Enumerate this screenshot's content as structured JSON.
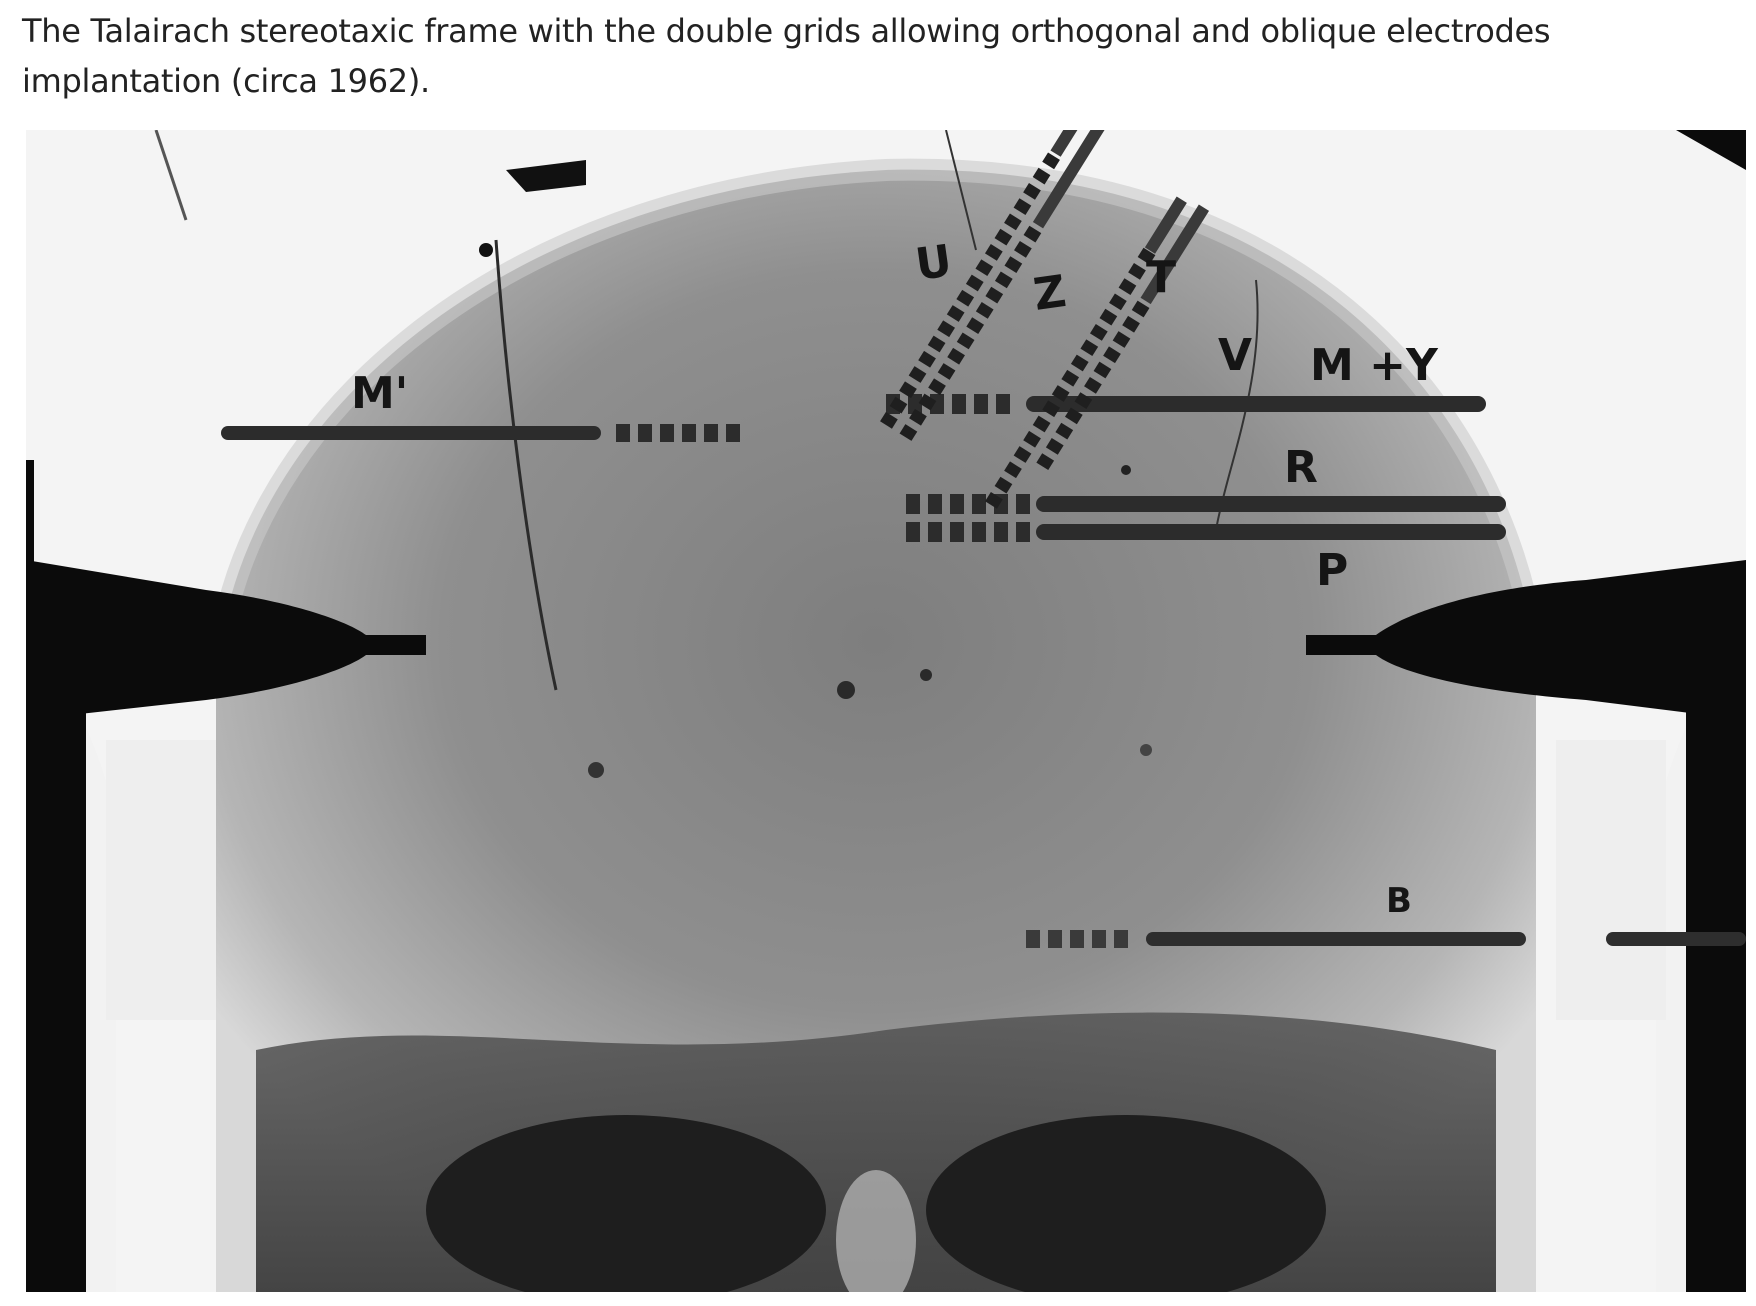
{
  "caption": {
    "text": "The Talairach stereotaxic frame with the double grids allowing orthogonal and oblique electrodes implantation (circa 1962)."
  },
  "figure": {
    "labels": {
      "m_prime": "M'",
      "u": "U",
      "z": "Z",
      "t": "T",
      "v": "V",
      "m_y": "M +Y",
      "r": "R",
      "p": "P",
      "b": "B"
    }
  }
}
